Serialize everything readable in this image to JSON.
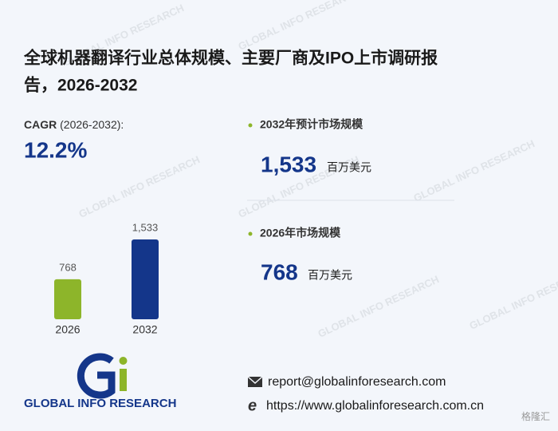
{
  "title_line1": "全球机器翻译行业总体规模、主要厂商及IPO上市调研报",
  "title_line2": "告，2026-2032",
  "cagr_label": "CAGR",
  "cagr_period": "(2026-2032):",
  "cagr_value": "12.2%",
  "stats": [
    {
      "label": "2032年预计市场规模",
      "value": "1,533",
      "unit": "百万美元"
    },
    {
      "label": "2026年市场规模",
      "value": "768",
      "unit": "百万美元"
    }
  ],
  "chart_data": {
    "type": "bar",
    "categories": [
      "2026",
      "2032"
    ],
    "values": [
      768,
      1533
    ],
    "value_labels": [
      "768",
      "1,533"
    ],
    "colors": [
      "#8db52a",
      "#14368a"
    ]
  },
  "logo_text": "GLOBAL INFO RESEARCH",
  "watermark": "GLOBAL INFO RESEARCH",
  "email": "report@globalinforesearch.com",
  "website": "https://www.globalinforesearch.com.cn",
  "source_mark": "格隆汇"
}
